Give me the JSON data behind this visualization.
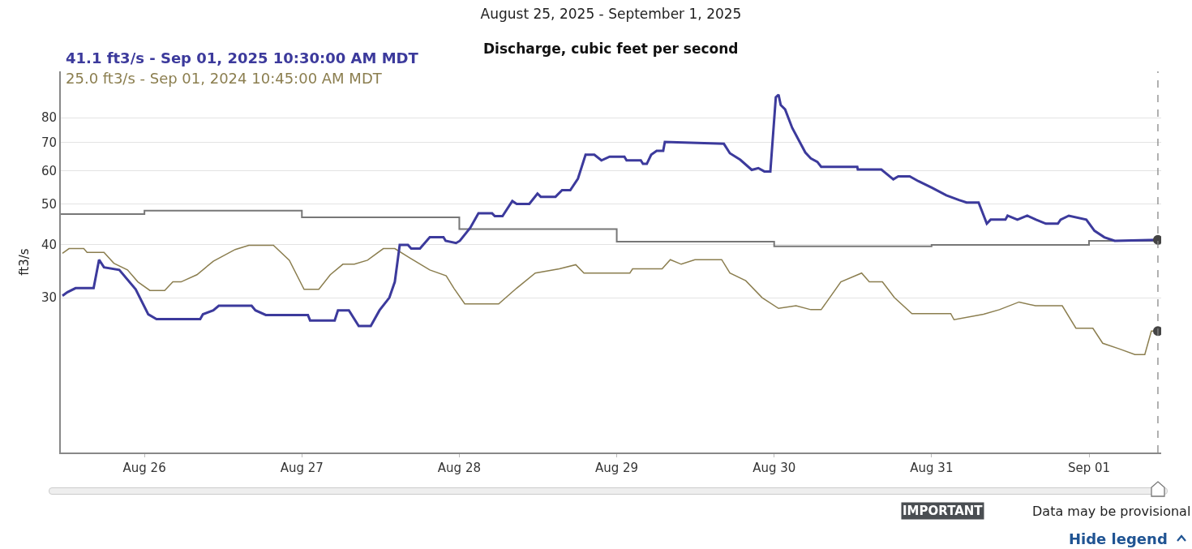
{
  "chart_data": {
    "type": "line",
    "title": "August 25, 2025 - September 1, 2025",
    "subtitle": "Discharge, cubic feet per second",
    "ylabel": "ft3/s",
    "log": "y",
    "grid": "y",
    "legend": false,
    "xlim": [
      "2025-08-25T11:15",
      "2025-09-01T11:00"
    ],
    "xticks": [
      {
        "value": "2025-08-26",
        "label": "Aug 26"
      },
      {
        "value": "2025-08-27",
        "label": "Aug 27"
      },
      {
        "value": "2025-08-28",
        "label": "Aug 28"
      },
      {
        "value": "2025-08-29",
        "label": "Aug 29"
      },
      {
        "value": "2025-08-30",
        "label": "Aug 30"
      },
      {
        "value": "2025-08-31",
        "label": "Aug 31"
      },
      {
        "value": "2025-09-01",
        "label": "Sep 01"
      }
    ],
    "ylim": [
      12.9,
      103
    ],
    "yticks": [
      30,
      40,
      50,
      60,
      70,
      80
    ],
    "ref_lines": [
      {
        "axis": "x",
        "value": "2025-09-01T10:30",
        "label": null,
        "color": "#888888",
        "line_style": "dashed"
      }
    ],
    "series": [
      {
        "type": "step",
        "color": "#777777",
        "x": [
          "2025-08-25T11:15",
          "2025-08-26",
          "2025-08-27",
          "2025-08-28",
          "2025-08-29",
          "2025-08-30",
          "2025-08-31",
          "2025-09-01",
          "2025-09-01T10:30"
        ],
        "values": [
          47.3,
          48.2,
          46.5,
          43.6,
          40.7,
          39.7,
          40.0,
          40.9,
          40.9
        ]
      },
      {
        "name": "25.0 ft3/s - Sep 01, 2024 10:45:00 AM MDT",
        "color": "#8b7e4f",
        "x": [
          "2025-08-25T11:30",
          "2025-08-25T12:30",
          "2025-08-25T14:45",
          "2025-08-25T15:15",
          "2025-08-25T17:50",
          "2025-08-25T19:20",
          "2025-08-25T21:25",
          "2025-08-25T23:00",
          "2025-08-26T00:50",
          "2025-08-26T03:05",
          "2025-08-26T04:20",
          "2025-08-26T05:35",
          "2025-08-26T08:00",
          "2025-08-26T10:30",
          "2025-08-26T13:50",
          "2025-08-26T15:55",
          "2025-08-26T19:40",
          "2025-08-26T22:05",
          "2025-08-27T00:20",
          "2025-08-27T02:35",
          "2025-08-27T04:20",
          "2025-08-27T06:15",
          "2025-08-27T08:00",
          "2025-08-27T10:00",
          "2025-08-27T12:25",
          "2025-08-27T14:10",
          "2025-08-27T16:10",
          "2025-08-27T19:30",
          "2025-08-27T22:00",
          "2025-08-27T23:10",
          "2025-08-28T00:50",
          "2025-08-28T06:00",
          "2025-08-28T08:45",
          "2025-08-28T11:35",
          "2025-08-28T15:15",
          "2025-08-28T17:45",
          "2025-08-28T19:00",
          "2025-08-29T02:00",
          "2025-08-29T02:25",
          "2025-08-29T06:55",
          "2025-08-29T08:10",
          "2025-08-29T09:50",
          "2025-08-29T11:55",
          "2025-08-29T16:00",
          "2025-08-29T17:15",
          "2025-08-29T19:40",
          "2025-08-29T22:10",
          "2025-08-30T00:40",
          "2025-08-30T03:20",
          "2025-08-30T05:35",
          "2025-08-30T07:10",
          "2025-08-30T10:10",
          "2025-08-30T13:20",
          "2025-08-30T14:30",
          "2025-08-30T16:30",
          "2025-08-30T18:20",
          "2025-08-30T21:00",
          "2025-08-31T02:55",
          "2025-08-31T03:25",
          "2025-08-31T07:55",
          "2025-08-31T10:20",
          "2025-08-31T13:20",
          "2025-08-31T15:50",
          "2025-08-31T19:55",
          "2025-08-31T22:00",
          "2025-09-01T00:35",
          "2025-09-01T02:05",
          "2025-09-01T04:35",
          "2025-09-01T07:00",
          "2025-09-01T08:30",
          "2025-09-01T09:30",
          "2025-09-01T10:30"
        ],
        "values": [
          38.2,
          39.2,
          39.2,
          38.4,
          38.4,
          36.2,
          34.9,
          32.7,
          31.2,
          31.2,
          32.7,
          32.7,
          34.0,
          36.6,
          39.0,
          39.9,
          39.9,
          36.8,
          31.4,
          31.4,
          34.0,
          36.0,
          36.0,
          36.8,
          39.2,
          39.2,
          37.5,
          34.9,
          33.8,
          31.6,
          29.0,
          29.0,
          31.6,
          34.3,
          35.1,
          35.9,
          34.3,
          34.3,
          35.1,
          35.1,
          36.9,
          36.0,
          36.9,
          36.9,
          34.3,
          32.9,
          30.0,
          28.3,
          28.7,
          28.1,
          28.1,
          32.7,
          34.3,
          32.7,
          32.7,
          30.0,
          27.5,
          27.5,
          26.6,
          27.4,
          28.1,
          29.3,
          28.7,
          28.7,
          25.4,
          25.4,
          23.4,
          22.7,
          22.0,
          22.0,
          25.0,
          25.0
        ]
      },
      {
        "name": "41.1 ft3/s - Sep 01, 2025 10:30:00 AM MDT",
        "color": "#3c3a9c",
        "x": [
          "2025-08-25T11:30",
          "2025-08-25T12:15",
          "2025-08-25T13:30",
          "2025-08-25T16:15",
          "2025-08-25T17:05",
          "2025-08-25T17:50",
          "2025-08-25T20:10",
          "2025-08-25T22:40",
          "2025-08-26T00:35",
          "2025-08-26T01:50",
          "2025-08-26T08:30",
          "2025-08-26T08:55",
          "2025-08-26T10:30",
          "2025-08-26T11:20",
          "2025-08-26T16:20",
          "2025-08-26T16:55",
          "2025-08-26T18:30",
          "2025-08-27T00:55",
          "2025-08-27T01:15",
          "2025-08-27T05:00",
          "2025-08-27T05:30",
          "2025-08-27T07:10",
          "2025-08-27T08:40",
          "2025-08-27T10:30",
          "2025-08-27T11:50",
          "2025-08-27T13:20",
          "2025-08-27T14:10",
          "2025-08-27T14:55",
          "2025-08-27T16:10",
          "2025-08-27T16:40",
          "2025-08-27T18:00",
          "2025-08-27T19:30",
          "2025-08-27T21:35",
          "2025-08-27T21:55",
          "2025-08-27T23:30",
          "2025-08-28T00:05",
          "2025-08-28T01:40",
          "2025-08-28T02:55",
          "2025-08-28T05:00",
          "2025-08-28T05:25",
          "2025-08-28T06:35",
          "2025-08-28T08:05",
          "2025-08-28T08:45",
          "2025-08-28T10:40",
          "2025-08-28T11:55",
          "2025-08-28T12:25",
          "2025-08-28T14:40",
          "2025-08-28T15:40",
          "2025-08-28T16:55",
          "2025-08-28T18:05",
          "2025-08-28T19:15",
          "2025-08-28T20:35",
          "2025-08-28T21:40",
          "2025-08-28T22:55",
          "2025-08-29T01:10",
          "2025-08-29T01:30",
          "2025-08-29T03:40",
          "2025-08-29T04:00",
          "2025-08-29T04:35",
          "2025-08-29T05:15",
          "2025-08-29T06:05",
          "2025-08-29T07:05",
          "2025-08-29T07:20",
          "2025-08-29T16:20",
          "2025-08-29T17:15",
          "2025-08-29T18:50",
          "2025-08-29T20:35",
          "2025-08-29T21:35",
          "2025-08-29T22:30",
          "2025-08-29T23:25",
          "2025-08-30T00:15",
          "2025-08-30T00:40",
          "2025-08-30T01:00",
          "2025-08-30T01:40",
          "2025-08-30T02:45",
          "2025-08-30T04:45",
          "2025-08-30T05:35",
          "2025-08-30T06:35",
          "2025-08-30T07:10",
          "2025-08-30T12:40",
          "2025-08-30T12:45",
          "2025-08-30T16:20",
          "2025-08-30T18:10",
          "2025-08-30T18:55",
          "2025-08-30T20:40",
          "2025-08-30T22:00",
          "2025-08-31T00:05",
          "2025-08-31T02:15",
          "2025-08-31T04:10",
          "2025-08-31T05:20",
          "2025-08-31T07:10",
          "2025-08-31T08:25",
          "2025-08-31T09:00",
          "2025-08-31T11:15",
          "2025-08-31T11:35",
          "2025-08-31T13:05",
          "2025-08-31T14:35",
          "2025-08-31T15:55",
          "2025-08-31T17:25",
          "2025-08-31T19:15",
          "2025-08-31T19:40",
          "2025-08-31T20:55",
          "2025-08-31T23:35",
          "2025-09-01T00:50",
          "2025-09-01T02:20",
          "2025-09-01T03:55",
          "2025-09-01T10:30"
        ],
        "values": [
          30.3,
          30.9,
          31.6,
          31.6,
          36.9,
          35.4,
          34.9,
          31.4,
          27.4,
          26.7,
          26.7,
          27.4,
          28.0,
          28.7,
          28.7,
          28.0,
          27.3,
          27.3,
          26.5,
          26.5,
          28.0,
          28.0,
          25.7,
          25.7,
          28.0,
          30.0,
          32.7,
          40.0,
          40.0,
          39.2,
          39.2,
          41.7,
          41.7,
          40.9,
          40.4,
          40.9,
          43.9,
          47.5,
          47.5,
          46.8,
          46.8,
          50.8,
          50.0,
          50.0,
          52.9,
          52.0,
          52.0,
          53.9,
          53.9,
          57.4,
          65.4,
          65.4,
          63.4,
          64.7,
          64.7,
          63.4,
          63.4,
          62.2,
          62.2,
          65.4,
          66.8,
          66.8,
          70.1,
          69.4,
          65.9,
          63.6,
          60.2,
          60.8,
          59.7,
          59.7,
          89.4,
          90.7,
          85.7,
          83.7,
          75.7,
          66.2,
          64.1,
          62.9,
          61.2,
          61.2,
          60.3,
          60.3,
          57.2,
          58.1,
          58.1,
          56.6,
          54.6,
          52.4,
          51.1,
          50.4,
          50.4,
          44.9,
          45.9,
          45.9,
          46.9,
          45.9,
          46.9,
          45.9,
          44.9,
          44.9,
          45.9,
          46.9,
          45.9,
          43.2,
          41.7,
          40.9,
          41.1
        ]
      },
      {
        "type": "scatter",
        "color": "#444444",
        "marker": "circle",
        "x": [
          "2025-09-01T10:30",
          "2025-09-01T10:30"
        ],
        "values": [
          41.1,
          25.0
        ]
      }
    ],
    "annotations": [
      "IMPORTANT",
      "Data may be provisional",
      "Hide legend"
    ]
  }
}
